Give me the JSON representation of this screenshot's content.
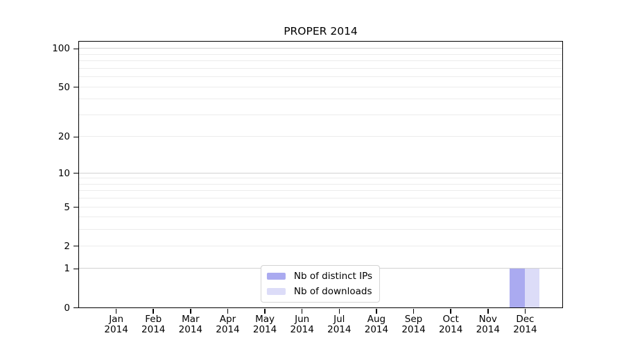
{
  "title": "PROPER 2014",
  "chart_data": {
    "type": "bar",
    "title": "PROPER 2014",
    "categories": [
      "Jan",
      "Feb",
      "Mar",
      "Apr",
      "May",
      "Jun",
      "Jul",
      "Aug",
      "Sep",
      "Oct",
      "Nov",
      "Dec"
    ],
    "x_year_label": "2014",
    "series": [
      {
        "name": "Nb of distinct IPs",
        "color": "#aaaaf0",
        "values": [
          0,
          0,
          0,
          0,
          0,
          0,
          0,
          0,
          0,
          0,
          0,
          1
        ]
      },
      {
        "name": "Nb of downloads",
        "color": "#dcdcf8",
        "values": [
          0,
          0,
          0,
          0,
          0,
          0,
          0,
          0,
          0,
          0,
          0,
          1
        ]
      }
    ],
    "xlabel": "",
    "ylabel": "",
    "yscale": "log1p",
    "ylim": [
      0,
      113
    ],
    "y_tick_values": [
      0,
      1,
      2,
      5,
      10,
      20,
      50,
      100
    ],
    "y_major_gridlines": [
      1,
      10,
      100
    ],
    "y_minor_gridlines": [
      2,
      3,
      4,
      5,
      6,
      7,
      8,
      9,
      20,
      30,
      40,
      50,
      60,
      70,
      80,
      90
    ],
    "grid": true,
    "legend_position": "lower center"
  },
  "colors": {
    "distinct_ips_bar": "#aaaaf0",
    "downloads_bar": "#dcdcf8",
    "major_grid": "#d2d2d2",
    "minor_grid": "#ececec",
    "axis": "#000000",
    "legend_border": "#d3d3d3"
  }
}
